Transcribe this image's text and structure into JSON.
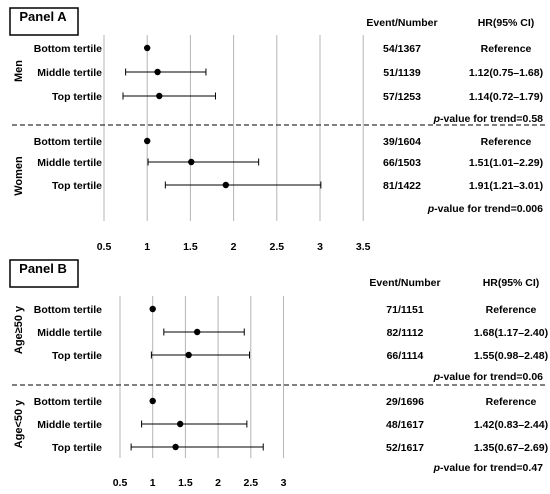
{
  "chart_data": [
    {
      "type": "forest",
      "panel_label": "Panel A",
      "headers": {
        "event": "Event/Number",
        "hr": "HR(95% CI)"
      },
      "xticks": [
        "0.5",
        "1",
        "1.5",
        "2",
        "2.5",
        "3",
        "3.5"
      ],
      "xlim": [
        0.5,
        3.5
      ],
      "reference_line": 1,
      "gridlines": true,
      "groups": [
        {
          "label": "Men",
          "trend_prefix": "p",
          "trend_text": "-value for trend=0.58",
          "rows": [
            {
              "label": "Bottom tertile",
              "hr": 1.0,
              "lo": null,
              "hi": null,
              "event": "54/1367",
              "ci_text": "Reference"
            },
            {
              "label": "Middle tertile",
              "hr": 1.12,
              "lo": 0.75,
              "hi": 1.68,
              "event": "51/1139",
              "ci_text": "1.12(0.75–1.68)"
            },
            {
              "label": "Top tertile",
              "hr": 1.14,
              "lo": 0.72,
              "hi": 1.79,
              "event": "57/1253",
              "ci_text": "1.14(0.72–1.79)"
            }
          ]
        },
        {
          "label": "Women",
          "trend_prefix": "p",
          "trend_text": "-value for trend=0.006",
          "rows": [
            {
              "label": "Bottom tertile",
              "hr": 1.0,
              "lo": null,
              "hi": null,
              "event": "39/1604",
              "ci_text": "Reference"
            },
            {
              "label": "Middle tertile",
              "hr": 1.51,
              "lo": 1.01,
              "hi": 2.29,
              "event": "66/1503",
              "ci_text": "1.51(1.01–2.29)"
            },
            {
              "label": "Top tertile",
              "hr": 1.91,
              "lo": 1.21,
              "hi": 3.01,
              "event": "81/1422",
              "ci_text": "1.91(1.21–3.01)"
            }
          ]
        }
      ]
    },
    {
      "type": "forest",
      "panel_label": "Panel B",
      "headers": {
        "event": "Event/Number",
        "hr": "HR(95% CI)"
      },
      "xticks": [
        "0.5",
        "1",
        "1.5",
        "2",
        "2.5",
        "3"
      ],
      "xlim": [
        0.5,
        3.0
      ],
      "reference_line": 1,
      "gridlines": true,
      "groups": [
        {
          "label": "Age≥50 y",
          "trend_prefix": "p",
          "trend_text": "-value for trend=0.06",
          "rows": [
            {
              "label": "Bottom tertile",
              "hr": 1.0,
              "lo": null,
              "hi": null,
              "event": "71/1151",
              "ci_text": "Reference"
            },
            {
              "label": "Middle tertile",
              "hr": 1.68,
              "lo": 1.17,
              "hi": 2.4,
              "event": "82/1112",
              "ci_text": "1.68(1.17–2.40)"
            },
            {
              "label": "Top tertile",
              "hr": 1.55,
              "lo": 0.98,
              "hi": 2.48,
              "event": "66/1114",
              "ci_text": "1.55(0.98–2.48)"
            }
          ]
        },
        {
          "label": "Age<50 y",
          "trend_prefix": "p",
          "trend_text": "-value for trend=0.47",
          "rows": [
            {
              "label": "Bottom tertile",
              "hr": 1.0,
              "lo": null,
              "hi": null,
              "event": "29/1696",
              "ci_text": "Reference"
            },
            {
              "label": "Middle tertile",
              "hr": 1.42,
              "lo": 0.83,
              "hi": 2.44,
              "event": "48/1617",
              "ci_text": "1.42(0.83–2.44)"
            },
            {
              "label": "Top tertile",
              "hr": 1.35,
              "lo": 0.67,
              "hi": 2.69,
              "event": "52/1617",
              "ci_text": "1.35(0.67–2.69)"
            }
          ]
        }
      ]
    }
  ]
}
